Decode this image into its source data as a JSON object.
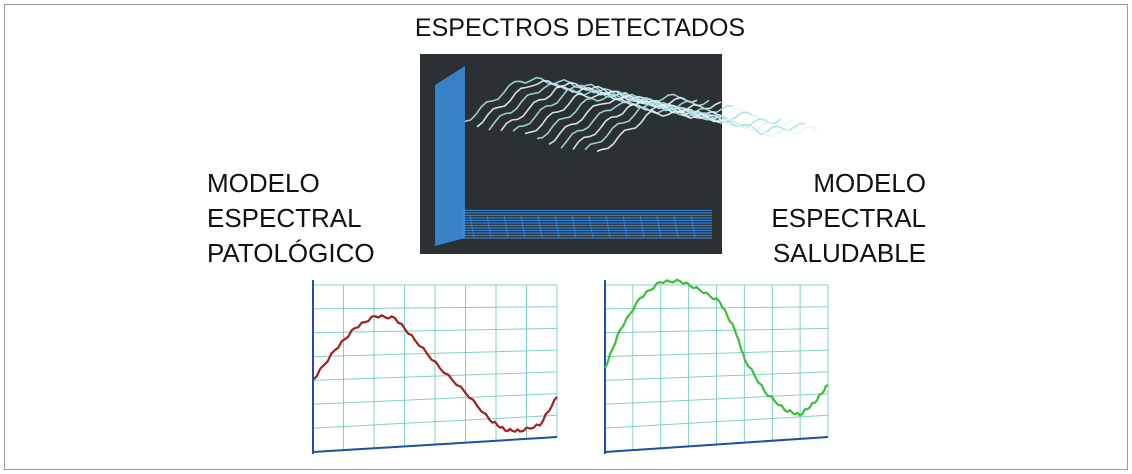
{
  "title": "ESPECTROS DETECTADOS",
  "left_label": {
    "lines": [
      "MODELO",
      "ESPECTRAL",
      "PATOLÓGICO"
    ]
  },
  "right_label": {
    "lines": [
      "MODELO",
      "ESPECTRAL",
      "SALUDABLE"
    ]
  }
}
